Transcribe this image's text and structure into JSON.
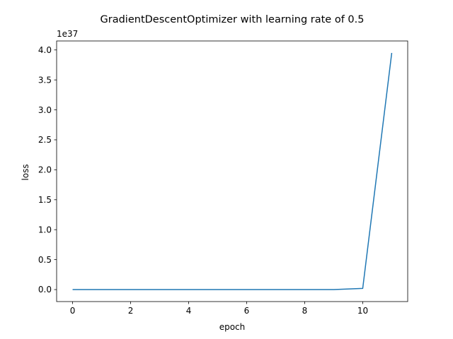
{
  "chart_data": {
    "type": "line",
    "title": "GradientDescentOptimizer with learning rate of 0.5",
    "xlabel": "epoch",
    "ylabel": "loss",
    "y_offset_label": "1e37",
    "xlim": [
      -0.55,
      11.55
    ],
    "ylim": [
      -0.2,
      4.15
    ],
    "x_ticks": [
      0,
      2,
      4,
      6,
      8,
      10
    ],
    "x_tick_labels": [
      "0",
      "2",
      "4",
      "6",
      "8",
      "10"
    ],
    "y_ticks": [
      0.0,
      0.5,
      1.0,
      1.5,
      2.0,
      2.5,
      3.0,
      3.5,
      4.0
    ],
    "y_tick_labels": [
      "0.0",
      "0.5",
      "1.0",
      "1.5",
      "2.0",
      "2.5",
      "3.0",
      "3.5",
      "4.0"
    ],
    "series": [
      {
        "color": "#1f77b4",
        "x": [
          0,
          1,
          2,
          3,
          4,
          5,
          6,
          7,
          8,
          9,
          10,
          11
        ],
        "y": [
          0,
          0,
          0,
          0,
          0,
          0,
          0,
          0,
          0,
          0,
          0.02,
          3.95
        ]
      }
    ],
    "grid": false,
    "legend": "none"
  }
}
